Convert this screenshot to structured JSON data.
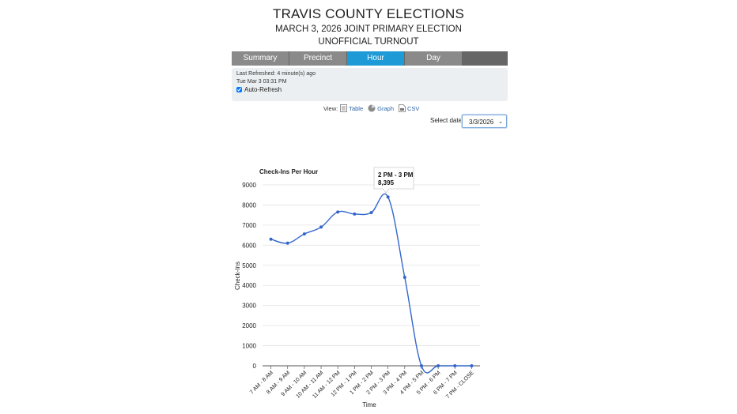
{
  "header": {
    "title": "TRAVIS COUNTY ELECTIONS",
    "subtitle": "MARCH 3, 2026 JOINT PRIMARY ELECTION",
    "subtitle2": "UNOFFICIAL TURNOUT"
  },
  "tabs": [
    {
      "label": "Summary"
    },
    {
      "label": "Precinct"
    },
    {
      "label": "Hour"
    },
    {
      "label": "Day"
    }
  ],
  "active_tab": "Hour",
  "refresh": {
    "last_refreshed": "Last Refreshed: 4 minute(s) ago",
    "timestamp": "Tue Mar 3 03:31 PM",
    "auto_label": "Auto-Refresh",
    "auto_checked": true
  },
  "view": {
    "label": "View:",
    "table": "Table",
    "graph": "Graph",
    "csv": "CSV",
    "icons": [
      "table-icon",
      "graph-icon",
      "csv-icon"
    ]
  },
  "date_select": {
    "label": "Select date:",
    "value": "3/3/2026"
  },
  "tooltip": {
    "title": "2 PM - 3 PM",
    "value": "8,395"
  },
  "colors": {
    "accent": "#1e9ad6",
    "tab": "#8a8a8a",
    "series": "#3366cc"
  },
  "chart_data": {
    "type": "line",
    "title": "Check-Ins Per Hour",
    "xlabel": "Time",
    "ylabel": "Check-Ins",
    "categories": [
      "7 AM - 8 AM",
      "8 AM - 9 AM",
      "9 AM - 10 AM",
      "10 AM - 11 AM",
      "11 AM - 12 PM",
      "12 PM - 1 PM",
      "1 PM - 2 PM",
      "2 PM - 3 PM",
      "3 PM - 4 PM",
      "4 PM - 5 PM",
      "5 PM - 6 PM",
      "6 PM - 7 PM",
      "7 PM - CLOSE"
    ],
    "values": [
      6300,
      6100,
      6560,
      6900,
      7650,
      7550,
      7620,
      8395,
      4400,
      0,
      0,
      0,
      0
    ],
    "yticks": [
      0,
      1000,
      2000,
      3000,
      4000,
      5000,
      6000,
      7000,
      8000,
      9000
    ],
    "ylim": [
      0,
      9000
    ],
    "grid": true,
    "legend": "none"
  }
}
